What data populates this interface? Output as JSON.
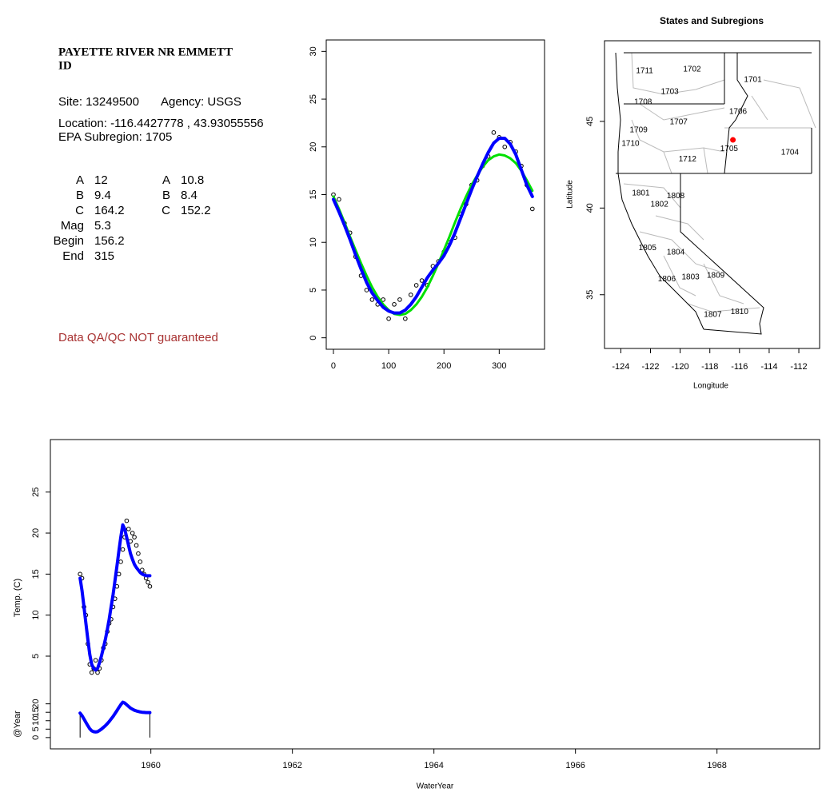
{
  "site_info": {
    "title": "PAYETTE RIVER NR EMMETT",
    "state": "ID",
    "site": "Site: 13249500",
    "agency": "Agency: USGS",
    "location_label": "Location:",
    "lon": -116.4427778,
    "separator": ",",
    "lat": 43.93055556,
    "subregion": "EPA Subregion: 1705",
    "params_1": [
      {
        "label": "A",
        "value": 12
      },
      {
        "label": "B",
        "value": 9.4
      },
      {
        "label": "C",
        "value": 164.2
      },
      {
        "label": "Mag",
        "value": 5.3
      },
      {
        "label": "Begin",
        "value": 156.2
      },
      {
        "label": "End",
        "value": 315
      }
    ],
    "params_2": [
      {
        "label": "A",
        "value": 10.8
      },
      {
        "label": "B",
        "value": 8.4
      },
      {
        "label": "C",
        "value": 152.2
      }
    ],
    "note": "Data QA/QC NOT guaranteed"
  },
  "chart_data": [
    {
      "type": "scatter",
      "x": [
        0,
        10,
        20,
        30,
        40,
        50,
        60,
        70,
        80,
        90,
        100,
        110,
        120,
        130,
        140,
        150,
        160,
        170,
        180,
        190,
        200,
        210,
        220,
        230,
        240,
        250,
        260,
        270,
        280,
        290,
        300,
        310,
        320,
        330,
        340,
        350,
        360
      ],
      "series": [
        {
          "style": "points",
          "color": "#000000",
          "values": [
            15,
            14.5,
            12,
            11,
            8.5,
            6.5,
            5,
            4,
            3.5,
            4,
            2,
            3.5,
            4,
            2,
            4.5,
            5.5,
            6,
            5.5,
            7.5,
            8,
            9,
            10,
            10.5,
            13,
            14,
            16,
            16.5,
            18,
            19,
            21.5,
            21,
            20,
            20.5,
            19.5,
            18,
            16,
            13.5
          ]
        },
        {
          "style": "line",
          "color": "#00e000",
          "values": [
            14.8,
            13.5,
            12.1,
            10.6,
            9.2,
            7.8,
            6.5,
            5.3,
            4.3,
            3.5,
            2.9,
            2.5,
            2.4,
            2.5,
            2.9,
            3.5,
            4.3,
            5.3,
            6.5,
            7.8,
            9.2,
            10.6,
            12.1,
            13.5,
            14.8,
            16,
            17,
            17.9,
            18.6,
            19,
            19.2,
            19.1,
            18.8,
            18.3,
            17.5,
            16.5,
            15.4
          ]
        },
        {
          "style": "line",
          "color": "#0000ff",
          "values": [
            14.5,
            13.2,
            11.8,
            10.3,
            8.7,
            7.2,
            5.8,
            4.7,
            3.9,
            3.2,
            2.8,
            2.6,
            2.6,
            2.9,
            3.5,
            4.3,
            5.3,
            6.3,
            7.1,
            7.8,
            8.6,
            9.7,
            11,
            12.5,
            14,
            15.5,
            16.9,
            18.2,
            19.4,
            20.4,
            20.9,
            20.9,
            20.3,
            19.2,
            17.6,
            16,
            14.8
          ]
        }
      ],
      "xlim": [
        -13,
        382
      ],
      "ylim": [
        -1.2,
        31.2
      ],
      "xticks": [
        0,
        100,
        200,
        300
      ],
      "yticks": [
        0,
        5,
        10,
        15,
        20,
        25,
        30
      ]
    },
    {
      "type": "map",
      "title": "States and Subregions",
      "xlabel": "Longitude",
      "ylabel": "Latitude",
      "xlim": [
        -125.1,
        -110.6
      ],
      "ylim": [
        31.9,
        49.65
      ],
      "xticks": [
        -124,
        -122,
        -120,
        -118,
        -116,
        -114,
        -112
      ],
      "yticks": [
        35,
        40,
        45
      ],
      "marker_color": "#ff0000",
      "regions": [
        {
          "label": "1702",
          "lon": -119.2,
          "lat": 48.0
        },
        {
          "label": "1701",
          "lon": -115.1,
          "lat": 47.4
        },
        {
          "label": "1711",
          "lon": -122.4,
          "lat": 47.9
        },
        {
          "label": "1703",
          "lon": -120.7,
          "lat": 46.7
        },
        {
          "label": "1708",
          "lon": -122.5,
          "lat": 46.1
        },
        {
          "label": "1706",
          "lon": -116.1,
          "lat": 45.55
        },
        {
          "label": "1707",
          "lon": -120.1,
          "lat": 44.95
        },
        {
          "label": "1709",
          "lon": -122.8,
          "lat": 44.5
        },
        {
          "label": "1710",
          "lon": -123.35,
          "lat": 43.7
        },
        {
          "label": "1705",
          "lon": -116.7,
          "lat": 43.4
        },
        {
          "label": "1704",
          "lon": -112.6,
          "lat": 43.2
        },
        {
          "label": "1712",
          "lon": -119.5,
          "lat": 42.8
        },
        {
          "label": "1801",
          "lon": -122.65,
          "lat": 40.85
        },
        {
          "label": "1808",
          "lon": -120.3,
          "lat": 40.7
        },
        {
          "label": "1802",
          "lon": -121.4,
          "lat": 40.2
        },
        {
          "label": "1805",
          "lon": -122.2,
          "lat": 37.7
        },
        {
          "label": "1804",
          "lon": -120.3,
          "lat": 37.45
        },
        {
          "label": "1806",
          "lon": -120.9,
          "lat": 35.9
        },
        {
          "label": "1803",
          "lon": -119.3,
          "lat": 36.0
        },
        {
          "label": "1809",
          "lon": -117.6,
          "lat": 36.1
        },
        {
          "label": "1810",
          "lon": -116.0,
          "lat": 34.0
        },
        {
          "label": "1807",
          "lon": -117.8,
          "lat": 33.85
        }
      ]
    },
    {
      "type": "timeseries",
      "xlabel": "WaterYear",
      "ylabel": "Temp. (C)",
      "x": [
        1959.0,
        1959.027,
        1959.055,
        1959.082,
        1959.11,
        1959.137,
        1959.164,
        1959.192,
        1959.219,
        1959.247,
        1959.274,
        1959.301,
        1959.329,
        1959.356,
        1959.384,
        1959.411,
        1959.438,
        1959.466,
        1959.493,
        1959.521,
        1959.548,
        1959.575,
        1959.603,
        1959.63,
        1959.658,
        1959.685,
        1959.712,
        1959.74,
        1959.767,
        1959.795,
        1959.822,
        1959.849,
        1959.877,
        1959.904,
        1959.932,
        1959.959,
        1959.986
      ],
      "series": [
        {
          "style": "points",
          "color": "#000000",
          "values": [
            15,
            14.5,
            11,
            10,
            6.5,
            4,
            3,
            3.5,
            4.5,
            3,
            3.5,
            4.5,
            6,
            6.5,
            8,
            9,
            9.5,
            11,
            12,
            13.5,
            15,
            16.5,
            18,
            19.5,
            21.5,
            20.5,
            19,
            20,
            19.5,
            18.5,
            17.5,
            16.5,
            15.5,
            15,
            14.5,
            14,
            13.5
          ]
        },
        {
          "style": "line",
          "color": "#0000ff",
          "values": [
            14.5,
            13,
            11,
            9,
            7,
            5.2,
            4,
            3.5,
            3.3,
            3.5,
            4.2,
            5,
            6,
            7,
            8.2,
            9.5,
            11,
            12.5,
            14.2,
            16,
            17.8,
            19.5,
            21,
            20.5,
            19.5,
            18.5,
            17.5,
            16.8,
            16.2,
            15.8,
            15.5,
            15.2,
            15,
            14.9,
            14.8,
            14.8,
            14.8
          ]
        }
      ],
      "xlim": [
        1958.58,
        1969.45
      ],
      "ylim": [
        1.2,
        31.4
      ],
      "xticks": [
        1960,
        1962,
        1964,
        1966,
        1968
      ],
      "yticks": [
        5,
        10,
        15,
        20,
        25
      ],
      "subpanel": {
        "ylabel": "@Year",
        "ylim": [
          -6.7,
          26
        ],
        "yticks": [
          0,
          5,
          10,
          15,
          20
        ]
      }
    }
  ]
}
